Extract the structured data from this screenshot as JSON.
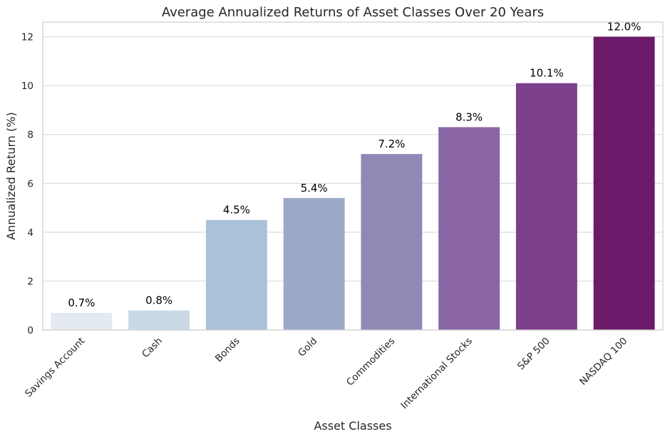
{
  "chart_data": {
    "type": "bar",
    "title": "Average Annualized Returns of Asset Classes Over 20 Years",
    "xlabel": "Asset Classes",
    "ylabel": "Annualized Return (%)",
    "categories": [
      "Savings Account",
      "Cash",
      "Bonds",
      "Gold",
      "Commodities",
      "International Stocks",
      "S&P 500",
      "NASDAQ 100"
    ],
    "values": [
      0.7,
      0.8,
      4.5,
      5.4,
      7.2,
      8.3,
      10.1,
      12.0
    ],
    "data_labels": [
      "0.7%",
      "0.8%",
      "4.5%",
      "5.4%",
      "7.2%",
      "8.3%",
      "10.1%",
      "12.0%"
    ],
    "colors": [
      "#e3eaf1",
      "#cbd9e6",
      "#a9c1d9",
      "#9aa9c8",
      "#9188b5",
      "#8966a3",
      "#7b3f8b",
      "#6a1a68"
    ],
    "ylim": [
      0,
      12.6
    ],
    "yticks": [
      0,
      2,
      4,
      6,
      8,
      10,
      12
    ],
    "grid": true,
    "legend": "none"
  }
}
